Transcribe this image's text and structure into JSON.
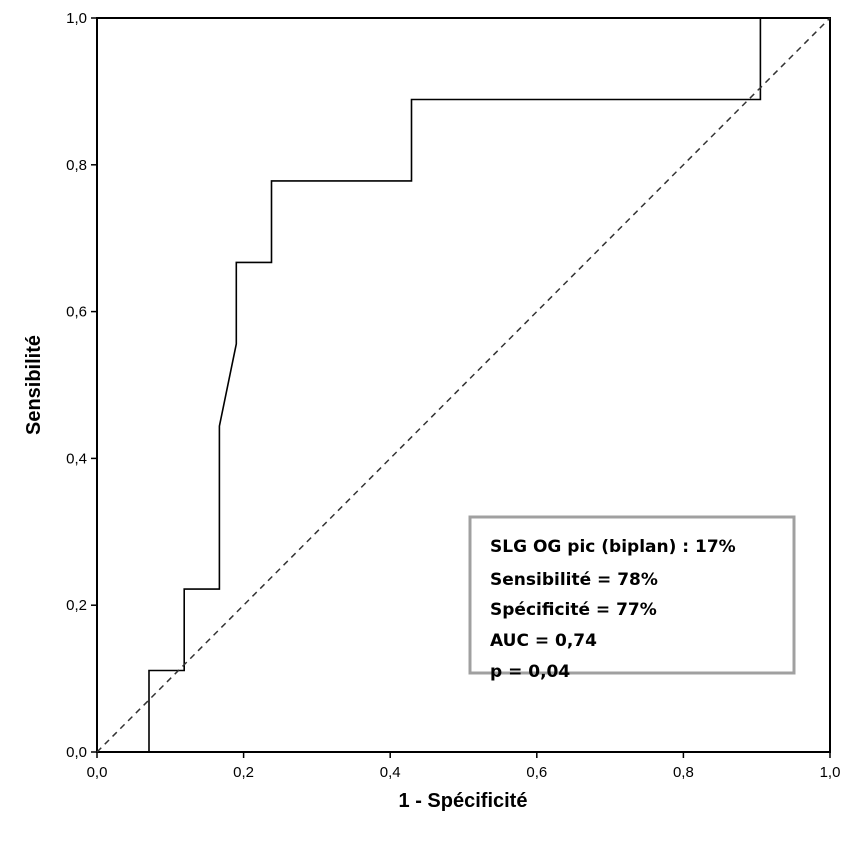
{
  "chart_data": {
    "type": "line",
    "xlabel": "1 - Spécificité",
    "ylabel": "Sensibilité",
    "xlim": [
      0,
      1
    ],
    "ylim": [
      0,
      1
    ],
    "x_ticks": [
      "0,0",
      "0,2",
      "0,4",
      "0,6",
      "0,8",
      "1,0"
    ],
    "y_ticks": [
      "0,0",
      "0,2",
      "0,4",
      "0,6",
      "0,8",
      "1,0"
    ],
    "grid": false,
    "series": [
      {
        "style": "solid",
        "color": "#000000",
        "points": [
          [
            0.071,
            0.0
          ],
          [
            0.071,
            0.111
          ],
          [
            0.119,
            0.111
          ],
          [
            0.119,
            0.222
          ],
          [
            0.167,
            0.222
          ],
          [
            0.167,
            0.444
          ],
          [
            0.19,
            0.556
          ],
          [
            0.19,
            0.667
          ],
          [
            0.238,
            0.667
          ],
          [
            0.238,
            0.778
          ],
          [
            0.429,
            0.778
          ],
          [
            0.429,
            0.889
          ],
          [
            0.905,
            0.889
          ],
          [
            0.905,
            1.0
          ],
          [
            1.0,
            1.0
          ]
        ]
      },
      {
        "style": "dashed",
        "color": "#333333",
        "points": [
          [
            0.0,
            0.0
          ],
          [
            1.0,
            1.0
          ]
        ]
      }
    ],
    "annotation": {
      "placement": "bottom-right",
      "lines": [
        "SLG OG pic (biplan) : 17%",
        "Sensibilité = 78%",
        "Spécificité = 77%",
        "AUC = 0,74",
        "p = 0,04"
      ],
      "border_color": "#a0a0a0"
    }
  }
}
